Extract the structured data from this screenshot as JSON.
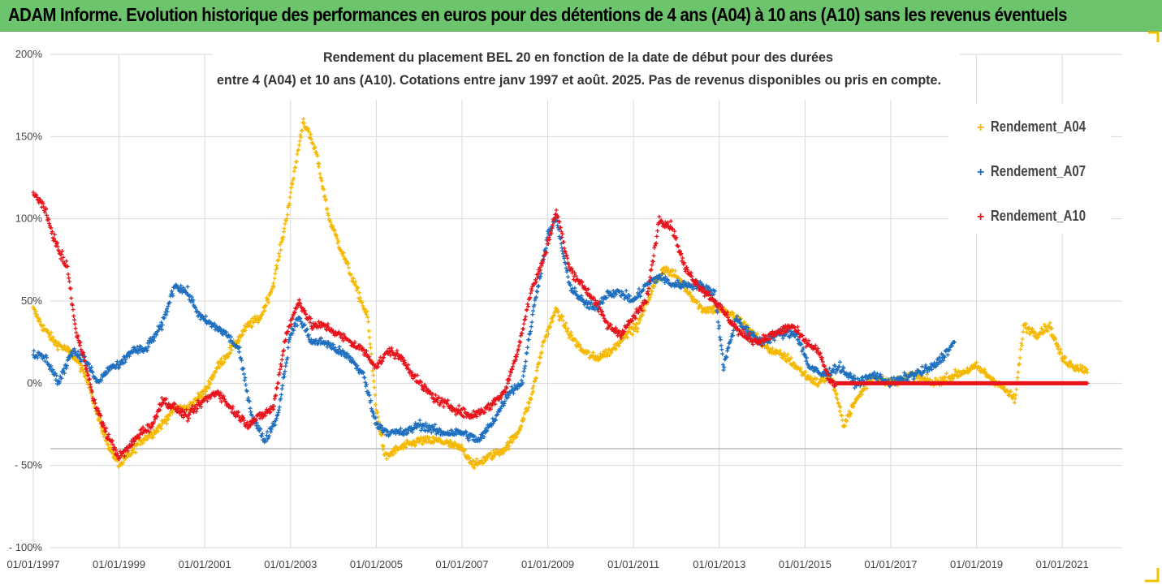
{
  "header": {
    "title": "ADAM Informe. Evolution historique des performances en euros pour des détentions de 4 ans (A04) à 10 ans (A10) sans les revenus éventuels"
  },
  "colors": {
    "header_bg": "#6cc46c",
    "frame_accent": "#f2c200",
    "A04": "#f5b800",
    "A07": "#1f6fbf",
    "A10": "#e8141c"
  },
  "chart_data": {
    "type": "scatter",
    "title_lines": [
      "Rendement du placement BEL 20 en fonction de la date de début pour des durées",
      "entre 4 (A04) et 10 ans (A10). Cotations entre janv 1997 et août. 2025. Pas de revenus disponibles ou pris en compte."
    ],
    "x_unit": "date",
    "xlim": [
      "01/01/1997",
      "01/01/2022"
    ],
    "x_ticks": [
      "01/01/1997",
      "01/01/1999",
      "01/01/2001",
      "01/01/2003",
      "01/01/2005",
      "01/01/2007",
      "01/01/2009",
      "01/01/2011",
      "01/01/2013",
      "01/01/2015",
      "01/01/2017",
      "01/01/2019",
      "01/01/2021"
    ],
    "ylim": [
      -1.0,
      2.0
    ],
    "y_ticks": [
      {
        "value": 2.0,
        "label": "200%"
      },
      {
        "value": 1.5,
        "label": "150%"
      },
      {
        "value": 1.0,
        "label": "100%"
      },
      {
        "value": 0.5,
        "label": "50%"
      },
      {
        "value": 0.0,
        "label": "0%"
      },
      {
        "value": -0.5,
        "label": "- 50%"
      },
      {
        "value": -1.0,
        "label": "- 100%"
      }
    ],
    "grid": true,
    "marker": "+",
    "legend_position": "top-right",
    "series": [
      {
        "name": "Rendement_A04",
        "color": "#f5b800",
        "x_end": 2021.6,
        "points": [
          [
            1997.0,
            0.45
          ],
          [
            1997.2,
            0.35
          ],
          [
            1997.5,
            0.25
          ],
          [
            1997.8,
            0.2
          ],
          [
            1998.0,
            0.15
          ],
          [
            1998.3,
            0.0
          ],
          [
            1998.5,
            -0.2
          ],
          [
            1998.7,
            -0.35
          ],
          [
            1999.0,
            -0.5
          ],
          [
            1999.2,
            -0.45
          ],
          [
            1999.5,
            -0.35
          ],
          [
            1999.8,
            -0.3
          ],
          [
            2000.0,
            -0.25
          ],
          [
            2000.3,
            -0.15
          ],
          [
            2000.6,
            -0.15
          ],
          [
            2001.0,
            -0.05
          ],
          [
            2001.3,
            0.1
          ],
          [
            2001.6,
            0.2
          ],
          [
            2002.0,
            0.35
          ],
          [
            2002.3,
            0.4
          ],
          [
            2002.6,
            0.6
          ],
          [
            2002.9,
            1.0
          ],
          [
            2003.1,
            1.3
          ],
          [
            2003.3,
            1.6
          ],
          [
            2003.6,
            1.4
          ],
          [
            2003.9,
            1.0
          ],
          [
            2004.2,
            0.8
          ],
          [
            2004.5,
            0.6
          ],
          [
            2004.8,
            0.4
          ],
          [
            2005.0,
            -0.15
          ],
          [
            2005.2,
            -0.45
          ],
          [
            2005.5,
            -0.4
          ],
          [
            2006.0,
            -0.35
          ],
          [
            2006.5,
            -0.35
          ],
          [
            2007.0,
            -0.4
          ],
          [
            2007.3,
            -0.5
          ],
          [
            2007.6,
            -0.45
          ],
          [
            2008.0,
            -0.4
          ],
          [
            2008.3,
            -0.3
          ],
          [
            2008.6,
            -0.1
          ],
          [
            2008.9,
            0.25
          ],
          [
            2009.2,
            0.45
          ],
          [
            2009.5,
            0.3
          ],
          [
            2009.8,
            0.2
          ],
          [
            2010.1,
            0.15
          ],
          [
            2010.5,
            0.2
          ],
          [
            2010.8,
            0.3
          ],
          [
            2011.1,
            0.35
          ],
          [
            2011.4,
            0.55
          ],
          [
            2011.7,
            0.7
          ],
          [
            2012.0,
            0.65
          ],
          [
            2012.3,
            0.55
          ],
          [
            2012.6,
            0.45
          ],
          [
            2013.0,
            0.45
          ],
          [
            2013.4,
            0.4
          ],
          [
            2013.8,
            0.3
          ],
          [
            2014.2,
            0.2
          ],
          [
            2014.6,
            0.15
          ],
          [
            2015.0,
            0.05
          ],
          [
            2015.3,
            0.0
          ],
          [
            2015.6,
            0.05
          ],
          [
            2015.9,
            -0.25
          ],
          [
            2016.2,
            -0.1
          ],
          [
            2016.6,
            0.05
          ],
          [
            2017.0,
            0.0
          ],
          [
            2017.5,
            0.05
          ],
          [
            2018.0,
            0.0
          ],
          [
            2018.5,
            0.05
          ],
          [
            2019.0,
            0.1
          ],
          [
            2019.5,
            0.0
          ],
          [
            2019.9,
            -0.1
          ],
          [
            2020.1,
            0.35
          ],
          [
            2020.4,
            0.3
          ],
          [
            2020.7,
            0.35
          ],
          [
            2021.0,
            0.15
          ],
          [
            2021.3,
            0.1
          ],
          [
            2021.6,
            0.08
          ]
        ]
      },
      {
        "name": "Rendement_A07",
        "color": "#1f6fbf",
        "x_end": 2018.5,
        "points": [
          [
            1997.0,
            0.18
          ],
          [
            1997.3,
            0.15
          ],
          [
            1997.6,
            0.0
          ],
          [
            1997.9,
            0.2
          ],
          [
            1998.2,
            0.15
          ],
          [
            1998.5,
            0.0
          ],
          [
            1998.8,
            0.1
          ],
          [
            1999.0,
            0.1
          ],
          [
            1999.3,
            0.2
          ],
          [
            1999.6,
            0.2
          ],
          [
            2000.0,
            0.35
          ],
          [
            2000.3,
            0.6
          ],
          [
            2000.6,
            0.55
          ],
          [
            2000.9,
            0.4
          ],
          [
            2001.2,
            0.35
          ],
          [
            2001.5,
            0.3
          ],
          [
            2001.8,
            0.2
          ],
          [
            2002.1,
            -0.2
          ],
          [
            2002.4,
            -0.35
          ],
          [
            2002.7,
            -0.2
          ],
          [
            2003.0,
            0.3
          ],
          [
            2003.2,
            0.4
          ],
          [
            2003.5,
            0.25
          ],
          [
            2003.8,
            0.25
          ],
          [
            2004.1,
            0.2
          ],
          [
            2004.4,
            0.15
          ],
          [
            2004.7,
            0.05
          ],
          [
            2005.0,
            -0.25
          ],
          [
            2005.3,
            -0.3
          ],
          [
            2005.7,
            -0.3
          ],
          [
            2006.0,
            -0.25
          ],
          [
            2006.5,
            -0.3
          ],
          [
            2007.0,
            -0.3
          ],
          [
            2007.4,
            -0.35
          ],
          [
            2007.8,
            -0.2
          ],
          [
            2008.1,
            -0.05
          ],
          [
            2008.4,
            0.0
          ],
          [
            2008.7,
            0.5
          ],
          [
            2009.0,
            0.9
          ],
          [
            2009.2,
            1.0
          ],
          [
            2009.5,
            0.6
          ],
          [
            2009.8,
            0.5
          ],
          [
            2010.1,
            0.45
          ],
          [
            2010.4,
            0.55
          ],
          [
            2010.7,
            0.55
          ],
          [
            2011.0,
            0.5
          ],
          [
            2011.3,
            0.6
          ],
          [
            2011.6,
            0.65
          ],
          [
            2011.9,
            0.6
          ],
          [
            2012.2,
            0.6
          ],
          [
            2012.5,
            0.6
          ],
          [
            2012.9,
            0.55
          ],
          [
            2013.1,
            0.1
          ],
          [
            2013.4,
            0.4
          ],
          [
            2013.7,
            0.3
          ],
          [
            2014.0,
            0.25
          ],
          [
            2014.4,
            0.3
          ],
          [
            2014.8,
            0.3
          ],
          [
            2015.1,
            0.1
          ],
          [
            2015.4,
            0.05
          ],
          [
            2015.8,
            0.1
          ],
          [
            2016.2,
            0.0
          ],
          [
            2016.6,
            0.05
          ],
          [
            2017.0,
            0.0
          ],
          [
            2017.5,
            0.05
          ],
          [
            2018.0,
            0.1
          ],
          [
            2018.5,
            0.25
          ]
        ]
      },
      {
        "name": "Rendement_A10",
        "color": "#e8141c",
        "x_end": 2021.6,
        "points": [
          [
            1997.0,
            1.15
          ],
          [
            1997.2,
            1.1
          ],
          [
            1997.4,
            0.95
          ],
          [
            1997.6,
            0.8
          ],
          [
            1997.8,
            0.7
          ],
          [
            1998.0,
            0.3
          ],
          [
            1998.2,
            0.15
          ],
          [
            1998.4,
            -0.1
          ],
          [
            1998.7,
            -0.3
          ],
          [
            1999.0,
            -0.45
          ],
          [
            1999.2,
            -0.4
          ],
          [
            1999.5,
            -0.3
          ],
          [
            1999.8,
            -0.25
          ],
          [
            2000.0,
            -0.1
          ],
          [
            2000.3,
            -0.15
          ],
          [
            2000.6,
            -0.2
          ],
          [
            2001.0,
            -0.1
          ],
          [
            2001.3,
            -0.05
          ],
          [
            2001.6,
            -0.15
          ],
          [
            2002.0,
            -0.25
          ],
          [
            2002.3,
            -0.2
          ],
          [
            2002.6,
            -0.15
          ],
          [
            2002.9,
            0.3
          ],
          [
            2003.2,
            0.5
          ],
          [
            2003.5,
            0.35
          ],
          [
            2003.8,
            0.35
          ],
          [
            2004.1,
            0.3
          ],
          [
            2004.4,
            0.25
          ],
          [
            2004.7,
            0.2
          ],
          [
            2005.0,
            0.1
          ],
          [
            2005.3,
            0.2
          ],
          [
            2005.6,
            0.15
          ],
          [
            2006.0,
            0.0
          ],
          [
            2006.4,
            -0.1
          ],
          [
            2006.8,
            -0.15
          ],
          [
            2007.2,
            -0.2
          ],
          [
            2007.6,
            -0.15
          ],
          [
            2008.0,
            -0.05
          ],
          [
            2008.3,
            0.2
          ],
          [
            2008.6,
            0.55
          ],
          [
            2008.9,
            0.75
          ],
          [
            2009.2,
            1.05
          ],
          [
            2009.5,
            0.7
          ],
          [
            2009.8,
            0.6
          ],
          [
            2010.1,
            0.5
          ],
          [
            2010.4,
            0.35
          ],
          [
            2010.7,
            0.3
          ],
          [
            2011.0,
            0.4
          ],
          [
            2011.3,
            0.5
          ],
          [
            2011.6,
            1.0
          ],
          [
            2011.9,
            0.95
          ],
          [
            2012.2,
            0.7
          ],
          [
            2012.5,
            0.6
          ],
          [
            2012.9,
            0.5
          ],
          [
            2013.2,
            0.4
          ],
          [
            2013.5,
            0.3
          ],
          [
            2013.9,
            0.25
          ],
          [
            2014.3,
            0.3
          ],
          [
            2014.7,
            0.35
          ],
          [
            2015.0,
            0.25
          ],
          [
            2015.3,
            0.2
          ],
          [
            2015.6,
            0.0
          ],
          [
            2016.0,
            0.0
          ],
          [
            2017.0,
            0.0
          ],
          [
            2018.0,
            0.0
          ],
          [
            2019.0,
            0.0
          ],
          [
            2020.0,
            0.0
          ],
          [
            2021.0,
            0.0
          ],
          [
            2021.6,
            0.0
          ]
        ]
      }
    ]
  }
}
